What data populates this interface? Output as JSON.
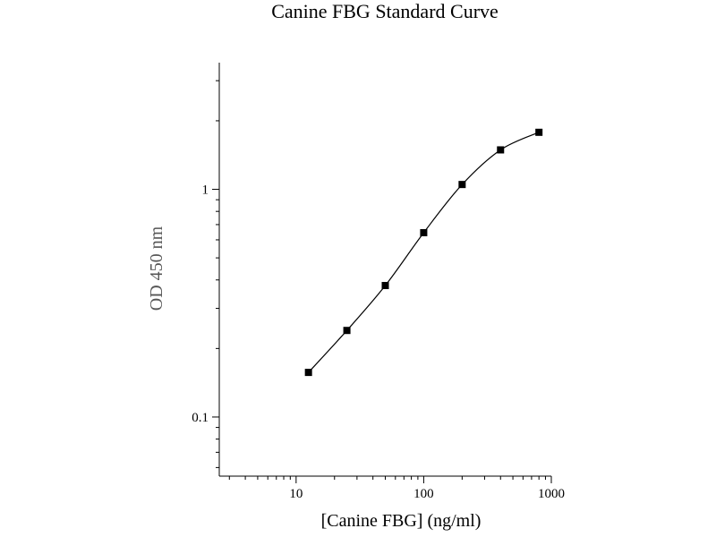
{
  "chart_data": {
    "type": "line",
    "title": "Canine FBG Standard Curve",
    "xlabel": "[Canine FBG] (ng/ml)",
    "ylabel": "OD 450 nm",
    "x_scale": "log",
    "y_scale": "log",
    "xlim": [
      2.5,
      1000
    ],
    "ylim": [
      0.055,
      3.6
    ],
    "x_ticks": [
      10,
      100,
      1000
    ],
    "x_tick_labels": [
      "10",
      "100",
      "1000"
    ],
    "y_ticks": [
      0.1,
      1
    ],
    "y_tick_labels": [
      "0.1",
      "1"
    ],
    "grid": false,
    "series": [
      {
        "x": [
          12.5,
          25,
          50,
          100,
          200,
          400,
          800
        ],
        "y": [
          0.157,
          0.24,
          0.378,
          0.645,
          1.05,
          1.49,
          1.78
        ],
        "marker": "square",
        "color": "#000000"
      }
    ]
  }
}
